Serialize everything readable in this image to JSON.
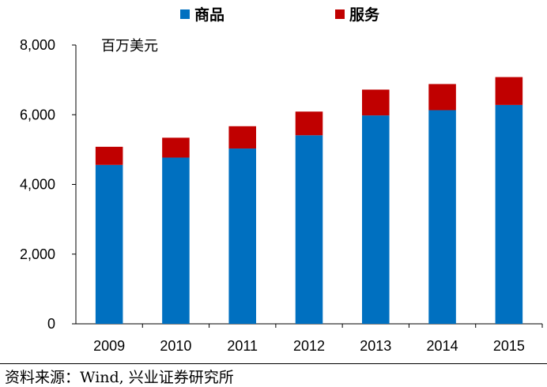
{
  "chart_data": {
    "type": "bar",
    "stacked": true,
    "unit_label": "百万美元",
    "categories": [
      "2009",
      "2010",
      "2011",
      "2012",
      "2013",
      "2014",
      "2015"
    ],
    "series": [
      {
        "name": "商品",
        "color": "#0070C0",
        "values": [
          4560,
          4770,
          5030,
          5410,
          5980,
          6130,
          6280
        ]
      },
      {
        "name": "服务",
        "color": "#C00000",
        "values": [
          520,
          570,
          640,
          680,
          740,
          750,
          800
        ]
      }
    ],
    "ylim": [
      0,
      8000
    ],
    "yticks": [
      "0",
      "2,000",
      "4,000",
      "6,000",
      "8,000"
    ],
    "ytick_values": [
      0,
      2000,
      4000,
      6000,
      8000
    ],
    "legend_position": "top",
    "grid": false
  },
  "source": "资料来源：Wind, 兴业证券研究所"
}
